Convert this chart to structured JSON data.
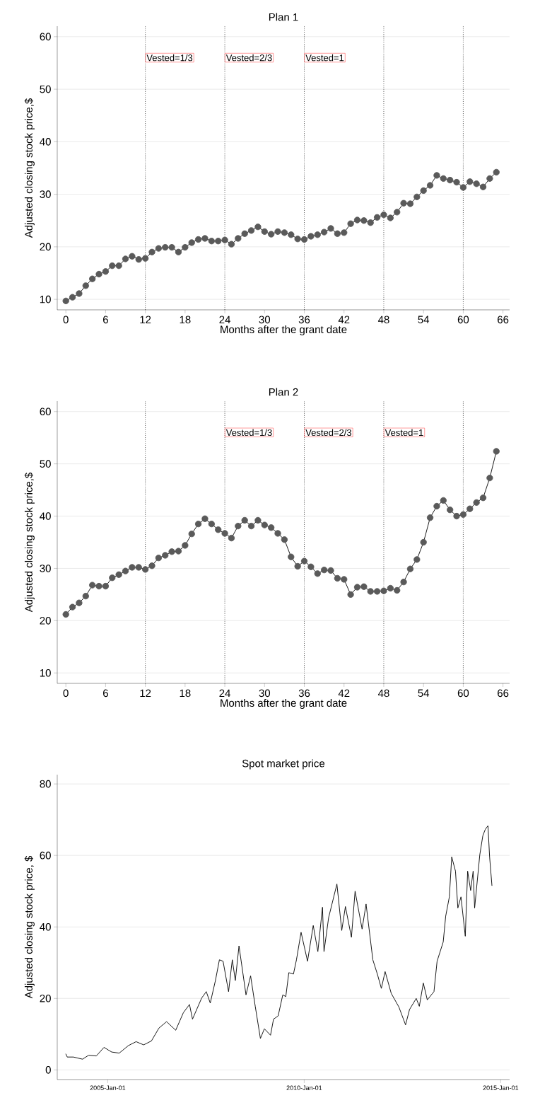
{
  "chart_data": [
    {
      "type": "line",
      "title": "Plan 1",
      "xlabel": "Months after the grant date",
      "ylabel": "Adjusted closing stock price,$",
      "x": [
        0,
        1,
        2,
        3,
        4,
        5,
        6,
        7,
        8,
        9,
        10,
        11,
        12,
        13,
        14,
        15,
        16,
        17,
        18,
        19,
        20,
        21,
        22,
        23,
        24,
        25,
        26,
        27,
        28,
        29,
        30,
        31,
        32,
        33,
        34,
        35,
        36,
        37,
        38,
        39,
        40,
        41,
        42,
        43,
        44,
        45,
        46,
        47,
        48,
        49,
        50,
        51,
        52,
        53,
        54,
        55,
        56,
        57,
        58,
        59,
        60,
        61,
        62,
        63,
        64,
        65
      ],
      "series": [
        {
          "color": "#5a5a5a",
          "values": [
            9.7,
            10.4,
            11.1,
            12.6,
            13.9,
            14.8,
            15.3,
            16.4,
            16.4,
            17.7,
            18.2,
            17.6,
            17.8,
            19.0,
            19.7,
            19.9,
            19.9,
            19.0,
            19.9,
            20.8,
            21.4,
            21.6,
            21.1,
            21.1,
            21.3,
            20.5,
            21.6,
            22.5,
            23.1,
            23.8,
            22.9,
            22.4,
            22.9,
            22.7,
            22.3,
            21.5,
            21.4,
            22.0,
            22.3,
            22.8,
            23.5,
            22.5,
            22.7,
            24.4,
            25.1,
            25.0,
            24.6,
            25.6,
            26.1,
            25.5,
            26.6,
            28.3,
            28.2,
            29.5,
            30.7,
            31.7,
            33.6,
            33.0,
            32.7,
            32.3,
            31.3,
            32.4,
            32.0,
            31.4,
            33.0,
            34.2
          ]
        }
      ],
      "xlim": [
        -1.3,
        67
      ],
      "xticks": [
        0,
        6,
        12,
        18,
        24,
        30,
        36,
        42,
        48,
        54,
        60,
        66
      ],
      "ylim": [
        8,
        62
      ],
      "yticks": [
        10,
        20,
        30,
        40,
        50,
        60
      ],
      "grid": "y",
      "marker": "circle",
      "ref_lines": [
        {
          "axis": "x",
          "value": 12,
          "line_style": "dotted"
        },
        {
          "axis": "x",
          "value": 24,
          "line_style": "dotted"
        },
        {
          "axis": "x",
          "value": 36,
          "line_style": "dotted"
        },
        {
          "axis": "x",
          "value": 48,
          "line_style": "dotted"
        },
        {
          "axis": "x",
          "value": 60,
          "line_style": "dotted"
        }
      ],
      "annotations": [
        {
          "text": "Vested=1/3",
          "x": 12,
          "y": 56
        },
        {
          "text": "Vested=2/3",
          "x": 24,
          "y": 56
        },
        {
          "text": "Vested=1",
          "x": 36,
          "y": 56
        }
      ]
    },
    {
      "type": "line",
      "title": "Plan 2",
      "xlabel": "Months after the grant date",
      "ylabel": "Adjusted closing stock price,$",
      "x": [
        0,
        1,
        2,
        3,
        4,
        5,
        6,
        7,
        8,
        9,
        10,
        11,
        12,
        13,
        14,
        15,
        16,
        17,
        18,
        19,
        20,
        21,
        22,
        23,
        24,
        25,
        26,
        27,
        28,
        29,
        30,
        31,
        32,
        33,
        34,
        35,
        36,
        37,
        38,
        39,
        40,
        41,
        42,
        43,
        44,
        45,
        46,
        47,
        48,
        49,
        50,
        51,
        52,
        53,
        54,
        55,
        56,
        57,
        58,
        59,
        60,
        61,
        62,
        63,
        64,
        65
      ],
      "series": [
        {
          "color": "#5a5a5a",
          "values": [
            21.2,
            22.6,
            23.4,
            24.7,
            26.8,
            26.6,
            26.6,
            28.2,
            28.8,
            29.5,
            30.2,
            30.2,
            29.8,
            30.5,
            32.0,
            32.5,
            33.2,
            33.3,
            34.4,
            36.6,
            38.5,
            39.5,
            38.5,
            37.4,
            36.7,
            35.8,
            38.1,
            39.2,
            38.1,
            39.2,
            38.3,
            37.8,
            36.7,
            35.5,
            32.2,
            30.4,
            31.4,
            30.3,
            29.0,
            29.7,
            29.6,
            28.1,
            27.9,
            25.0,
            26.4,
            26.5,
            25.6,
            25.6,
            25.7,
            26.2,
            25.8,
            27.4,
            29.9,
            31.7,
            35.0,
            39.7,
            41.9,
            43.0,
            41.2,
            40.0,
            40.3,
            41.4,
            42.6,
            43.5,
            47.3,
            52.4
          ]
        }
      ],
      "xlim": [
        -1.3,
        67
      ],
      "xticks": [
        0,
        6,
        12,
        18,
        24,
        30,
        36,
        42,
        48,
        54,
        60,
        66
      ],
      "ylim": [
        8,
        62
      ],
      "yticks": [
        10,
        20,
        30,
        40,
        50,
        60
      ],
      "grid": "y",
      "marker": "circle",
      "ref_lines": [
        {
          "axis": "x",
          "value": 12,
          "line_style": "dotted"
        },
        {
          "axis": "x",
          "value": 24,
          "line_style": "dotted"
        },
        {
          "axis": "x",
          "value": 36,
          "line_style": "dotted"
        },
        {
          "axis": "x",
          "value": 48,
          "line_style": "dotted"
        },
        {
          "axis": "x",
          "value": 60,
          "line_style": "dotted"
        }
      ],
      "annotations": [
        {
          "text": "Vested=1/3",
          "x": 24,
          "y": 56
        },
        {
          "text": "Vested=2/3",
          "x": 36,
          "y": 56
        },
        {
          "text": "Vested=1",
          "x": 48,
          "y": 56
        }
      ]
    },
    {
      "type": "line",
      "title": "Spot market price",
      "ylabel": "Adjusted closing stock price, $",
      "x": [
        "2003-12-08",
        "2003-12-22",
        "2004-02-17",
        "2004-05-12",
        "2004-07-08",
        "2004-09-17",
        "2004-11-27",
        "2005-02-07",
        "2005-04-18",
        "2005-07-12",
        "2005-09-22",
        "2005-12-01",
        "2006-02-11",
        "2006-04-22",
        "2006-07-02",
        "2006-09-25",
        "2006-12-05",
        "2007-01-31",
        "2007-02-28",
        "2007-05-24",
        "2007-07-06",
        "2007-08-12",
        "2007-09-29",
        "2007-11-05",
        "2007-12-09",
        "2008-01-29",
        "2008-03-04",
        "2008-04-01",
        "2008-05-05",
        "2008-07-09",
        "2008-08-21",
        "2008-10-03",
        "2008-11-20",
        "2008-12-27",
        "2009-02-22",
        "2009-03-22",
        "2009-05-04",
        "2009-06-16",
        "2009-07-14",
        "2009-08-11",
        "2009-09-23",
        "2009-10-21",
        "2009-12-03",
        "2010-02-01",
        "2010-03-26",
        "2010-05-08",
        "2010-06-20",
        "2010-07-04",
        "2010-08-16",
        "2010-11-01",
        "2010-12-16",
        "2011-01-19",
        "2011-03-16",
        "2011-04-19",
        "2011-06-23",
        "2011-07-30",
        "2011-10-01",
        "2011-11-12",
        "2011-12-19",
        "2012-01-23",
        "2012-03-20",
        "2012-05-30",
        "2012-07-31",
        "2012-09-06",
        "2012-11-07",
        "2012-12-06",
        "2013-01-12",
        "2013-02-18",
        "2013-04-21",
        "2013-05-20",
        "2013-07-16",
        "2013-08-08",
        "2013-09-11",
        "2013-10-03",
        "2013-11-07",
        "2013-11-29",
        "2013-12-28",
        "2014-02-06",
        "2014-02-28",
        "2014-03-28",
        "2014-04-20",
        "2014-05-04",
        "2014-06-21",
        "2014-07-19",
        "2014-08-11",
        "2014-09-05",
        "2014-09-20",
        "2014-10-12"
      ],
      "series": [
        {
          "color": "#000000",
          "values": [
            4.5,
            3.6,
            3.6,
            3.0,
            4.1,
            3.9,
            6.3,
            5.0,
            4.7,
            6.8,
            7.9,
            7.0,
            8.1,
            11.7,
            13.5,
            11.1,
            16.0,
            18.3,
            14.2,
            20.1,
            21.9,
            18.7,
            25.0,
            30.8,
            30.4,
            21.9,
            30.8,
            25.0,
            34.7,
            21.0,
            26.3,
            17.8,
            8.8,
            11.5,
            9.7,
            14.2,
            15.1,
            21.0,
            20.5,
            27.2,
            26.8,
            30.8,
            38.5,
            30.4,
            40.4,
            33.1,
            45.5,
            33.1,
            42.6,
            52.0,
            39.0,
            45.7,
            37.1,
            50.0,
            39.4,
            46.4,
            30.8,
            26.8,
            22.8,
            27.5,
            21.4,
            17.6,
            12.6,
            16.9,
            20.0,
            17.8,
            24.3,
            19.6,
            21.9,
            30.4,
            35.8,
            43.0,
            48.4,
            59.6,
            55.6,
            45.3,
            48.4,
            37.4,
            55.6,
            50.2,
            55.6,
            45.3,
            60.2,
            65.5,
            67.3,
            68.3,
            59.6,
            51.5
          ]
        }
      ],
      "xlim": [
        "2003-09-20",
        "2015-03-25"
      ],
      "xticks": [
        {
          "value": "2005-01-01",
          "label": "2005-Jan-01"
        },
        {
          "value": "2010-01-01",
          "label": "2010-Jan-01"
        },
        {
          "value": "2015-01-01",
          "label": "2015-Jan-01"
        }
      ],
      "ylim": [
        -2.7,
        82.6
      ],
      "yticks": [
        0,
        20,
        40,
        60,
        80
      ],
      "grid": "y",
      "marker": "none"
    }
  ]
}
